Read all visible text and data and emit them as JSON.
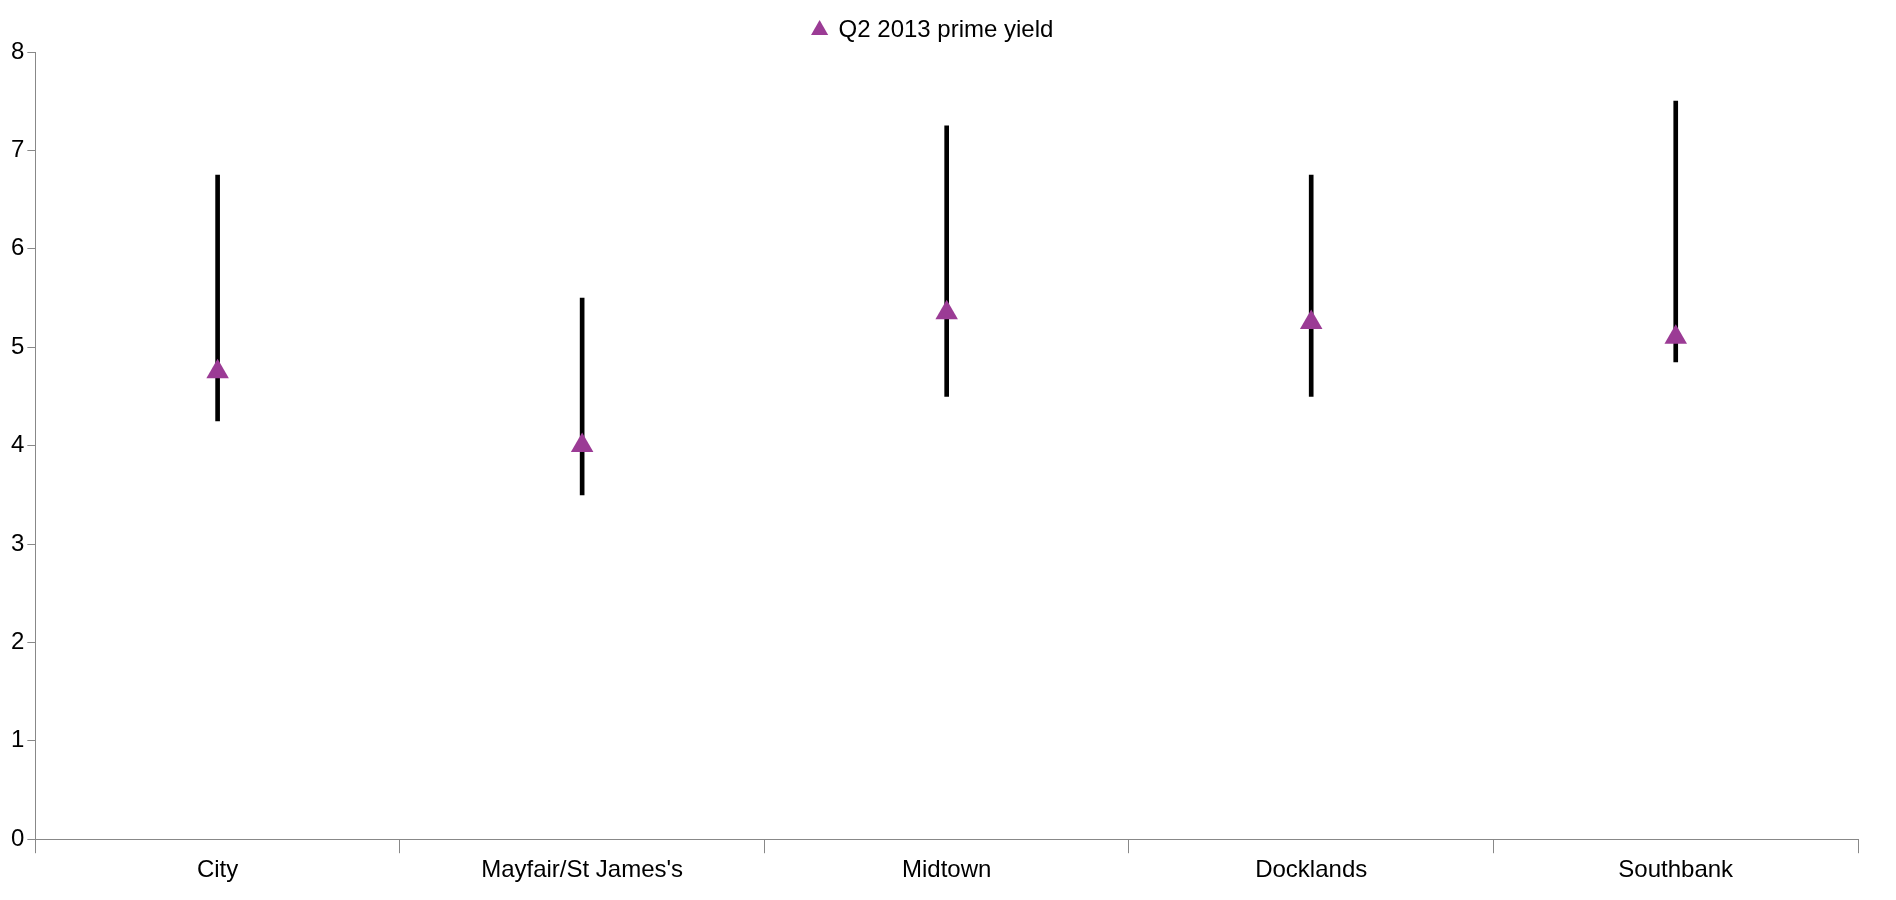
{
  "chart_data": {
    "type": "bar",
    "categories": [
      "City",
      "Mayfair/St James's",
      "Midtown",
      "Docklands",
      "Southbank"
    ],
    "series": [
      {
        "color": "#000000",
        "base": [
          4.25,
          3.5,
          4.5,
          4.5,
          4.85
        ],
        "values": [
          2.5,
          2.0,
          2.75,
          2.25,
          2.65
        ]
      },
      {
        "type": "scatter",
        "name": "Q2 2013 prime yield",
        "color": "#9b3b95",
        "marker": "triangle",
        "x": [
          "City",
          "Mayfair/St James's",
          "Midtown",
          "Docklands",
          "Southbank"
        ],
        "values": [
          4.75,
          4.0,
          5.35,
          5.25,
          5.1
        ]
      }
    ],
    "ylim": [
      0,
      8
    ],
    "yticks": [
      0,
      1,
      2,
      3,
      4,
      5,
      6,
      7,
      8
    ],
    "grid": false,
    "legend": "top"
  }
}
